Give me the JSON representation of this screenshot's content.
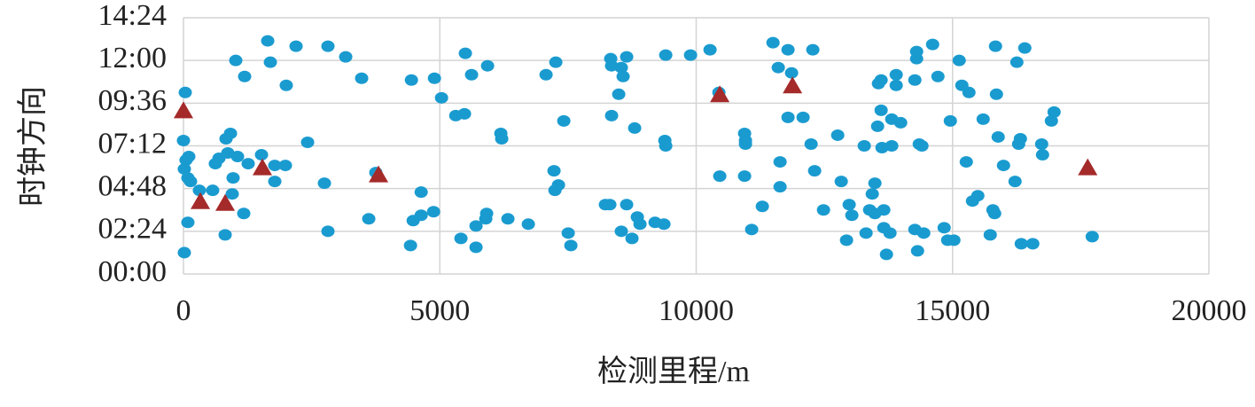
{
  "chart_data": {
    "type": "scatter",
    "x_label": "检测里程/m",
    "y_label": "时钟方向",
    "xlim": [
      0,
      20000
    ],
    "xticks": [
      0,
      5000,
      10000,
      15000,
      20000
    ],
    "ylim": [
      0,
      14.4
    ],
    "yticks": [
      {
        "value": 0,
        "label": "00:00"
      },
      {
        "value": 2.4,
        "label": "02:24"
      },
      {
        "value": 4.8,
        "label": "04:48"
      },
      {
        "value": 7.2,
        "label": "07:12"
      },
      {
        "value": 9.6,
        "label": "09:36"
      },
      {
        "value": 12,
        "label": "12:00"
      },
      {
        "value": 14.4,
        "label": "14:24"
      }
    ],
    "grid": true,
    "series": [
      {
        "color": "#1a9bd0",
        "marker": "circle",
        "x": [
          35,
          0,
          50,
          17,
          86,
          138,
          104,
          17,
          86,
          311,
          570,
          622,
          692,
          830,
          865,
          917,
          968,
          951,
          813,
          1020,
          1193,
          1055,
          1176,
          1262,
          1522,
          1643,
          1695,
          1781,
          1781,
          1988,
          2005,
          2196,
          2421,
          2749,
          2818,
          2818,
          3164,
          3475,
          3614,
          3752,
          4446,
          4428,
          4480,
          4636,
          4636,
          4878,
          4895,
          5033,
          5311,
          5481,
          5498,
          5619,
          5412,
          5706,
          5706,
          5931,
          5896,
          5913,
          6190,
          6207,
          6328,
          6726,
          7072,
          7262,
          7227,
          7314,
          7245,
          7418,
          7504,
          7556,
          8229,
          8333,
          8350,
          8350,
          8316,
          8540,
          8575,
          8644,
          8489,
          8644,
          8540,
          8800,
          8748,
          8852,
          8904,
          9198,
          9406,
          9389,
          9406,
          9371,
          9890,
          10270,
          10443,
          10460,
          10944,
          10961,
          10961,
          10944,
          11082,
          11290,
          11498,
          11636,
          11636,
          11601,
          11791,
          11860,
          11791,
          12085,
          12275,
          12241,
          12310,
          12483,
          12760,
          12829,
          12932,
          12984,
          13036,
          13278,
          13313,
          13382,
          13434,
          13486,
          13486,
          13538,
          13607,
          13555,
          13607,
          13624,
          13659,
          13659,
          13711,
          13814,
          13814,
          13780,
          13901,
          13901,
          13988,
          14299,
          14299,
          14265,
          14265,
          14317,
          14351,
          14403,
          14438,
          14611,
          14715,
          14836,
          14905,
          14957,
          15026,
          15130,
          15182,
          15268,
          15320,
          15389,
          15493,
          15597,
          15735,
          15787,
          15821,
          15838,
          15856,
          15890,
          15994,
          16219,
          16254,
          16289,
          16323,
          16409,
          16340,
          16565,
          16738,
          16755,
          16928,
          16980,
          17724
        ],
        "values": [
          10.2,
          7.5,
          6.4,
          5.9,
          5.4,
          5.2,
          6.6,
          1.2,
          2.9,
          4.7,
          4.7,
          6.2,
          6.5,
          7.6,
          6.8,
          7.9,
          5.4,
          4.5,
          2.2,
          12.0,
          11.1,
          6.6,
          3.4,
          6.2,
          6.7,
          13.1,
          11.9,
          6.1,
          5.2,
          6.1,
          10.6,
          12.8,
          7.4,
          5.1,
          12.8,
          2.4,
          12.2,
          11.0,
          3.1,
          5.7,
          10.9,
          1.6,
          3.0,
          4.6,
          3.3,
          3.5,
          11.0,
          9.9,
          8.9,
          9.0,
          12.4,
          11.2,
          2.0,
          2.7,
          1.5,
          11.7,
          3.1,
          3.4,
          7.9,
          7.6,
          3.1,
          2.8,
          11.2,
          11.9,
          5.8,
          5.0,
          4.7,
          8.6,
          2.3,
          1.6,
          3.9,
          12.1,
          11.7,
          8.9,
          3.9,
          11.6,
          11.1,
          12.2,
          10.1,
          3.9,
          2.4,
          8.2,
          2.0,
          3.2,
          2.8,
          2.9,
          7.2,
          7.5,
          12.3,
          2.8,
          12.3,
          12.6,
          10.2,
          5.5,
          7.9,
          7.5,
          7.3,
          5.5,
          2.5,
          3.8,
          13.0,
          4.9,
          6.3,
          11.6,
          12.6,
          11.3,
          8.8,
          8.8,
          12.6,
          7.3,
          5.8,
          3.6,
          7.8,
          5.2,
          1.9,
          3.9,
          3.3,
          7.2,
          2.3,
          3.6,
          4.5,
          5.1,
          3.4,
          8.3,
          9.2,
          10.7,
          10.9,
          7.1,
          3.6,
          2.6,
          1.1,
          8.7,
          7.2,
          2.3,
          11.2,
          10.6,
          8.5,
          12.5,
          12.1,
          10.9,
          2.5,
          1.3,
          7.3,
          7.2,
          2.3,
          12.9,
          11.1,
          2.6,
          1.9,
          8.6,
          1.9,
          12.0,
          10.6,
          6.3,
          10.2,
          4.1,
          4.4,
          8.7,
          2.2,
          3.6,
          3.4,
          12.8,
          10.1,
          7.7,
          6.1,
          5.2,
          11.9,
          7.3,
          7.6,
          12.7,
          1.7,
          1.7,
          7.3,
          6.7,
          8.6,
          9.1,
          2.1
        ]
      },
      {
        "color": "#a52a2a",
        "marker": "triangle",
        "x": [
          0,
          329,
          813,
          1539,
          3804,
          10460,
          11878,
          17636
        ],
        "values": [
          9.2,
          4.1,
          4.0,
          6.0,
          5.6,
          10.1,
          10.6,
          6.0
        ]
      }
    ]
  }
}
